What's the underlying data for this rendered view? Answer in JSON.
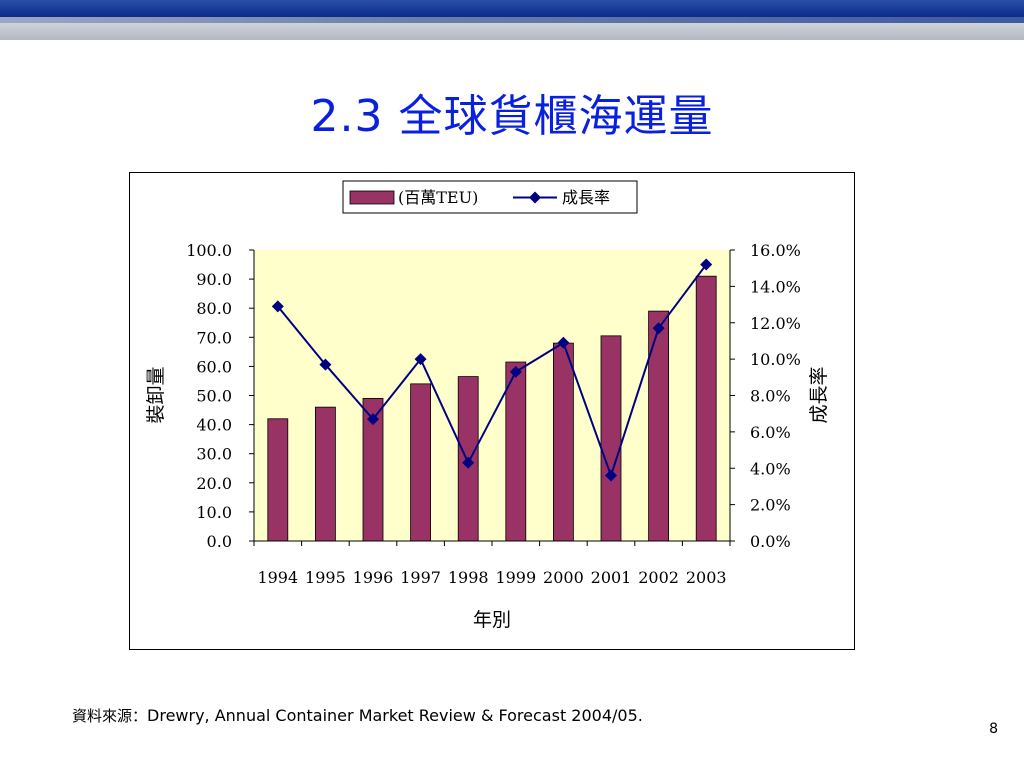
{
  "slide": {
    "title": "2.3 全球貨櫃海運量",
    "source_label": "資料來源：",
    "source_text": "Drewry, Annual Container Market Review & Forecast 2004/05.",
    "page_number": "8"
  },
  "colors": {
    "title": "#0a20e0",
    "bar_fill": "#993366",
    "line": "#000080",
    "plot_bg": "#ffffcc"
  },
  "chart_data": {
    "type": "bar",
    "title": "",
    "xlabel": "年別",
    "ylabel": "裝卸量",
    "y2label": "成長率",
    "categories": [
      "1994",
      "1995",
      "1996",
      "1997",
      "1998",
      "1999",
      "2000",
      "2001",
      "2002",
      "2003"
    ],
    "series": [
      {
        "name": "(百萬TEU)",
        "type": "bar",
        "axis": "left",
        "values": [
          42.0,
          46.0,
          49.0,
          54.0,
          56.5,
          61.5,
          68.0,
          70.5,
          79.0,
          91.0
        ]
      },
      {
        "name": "成長率",
        "type": "line",
        "axis": "right",
        "marker": "diamond",
        "values": [
          0.129,
          0.097,
          0.067,
          0.1,
          0.043,
          0.093,
          0.109,
          0.036,
          0.117,
          0.152
        ]
      }
    ],
    "ylim": [
      0,
      100
    ],
    "yticks": [
      "0.0",
      "10.0",
      "20.0",
      "30.0",
      "40.0",
      "50.0",
      "60.0",
      "70.0",
      "80.0",
      "90.0",
      "100.0"
    ],
    "y2lim": [
      0,
      0.16
    ],
    "y2ticks": [
      "0.0%",
      "2.0%",
      "4.0%",
      "6.0%",
      "8.0%",
      "10.0%",
      "12.0%",
      "14.0%",
      "16.0%"
    ],
    "legend_position": "top-center",
    "grid": false
  }
}
